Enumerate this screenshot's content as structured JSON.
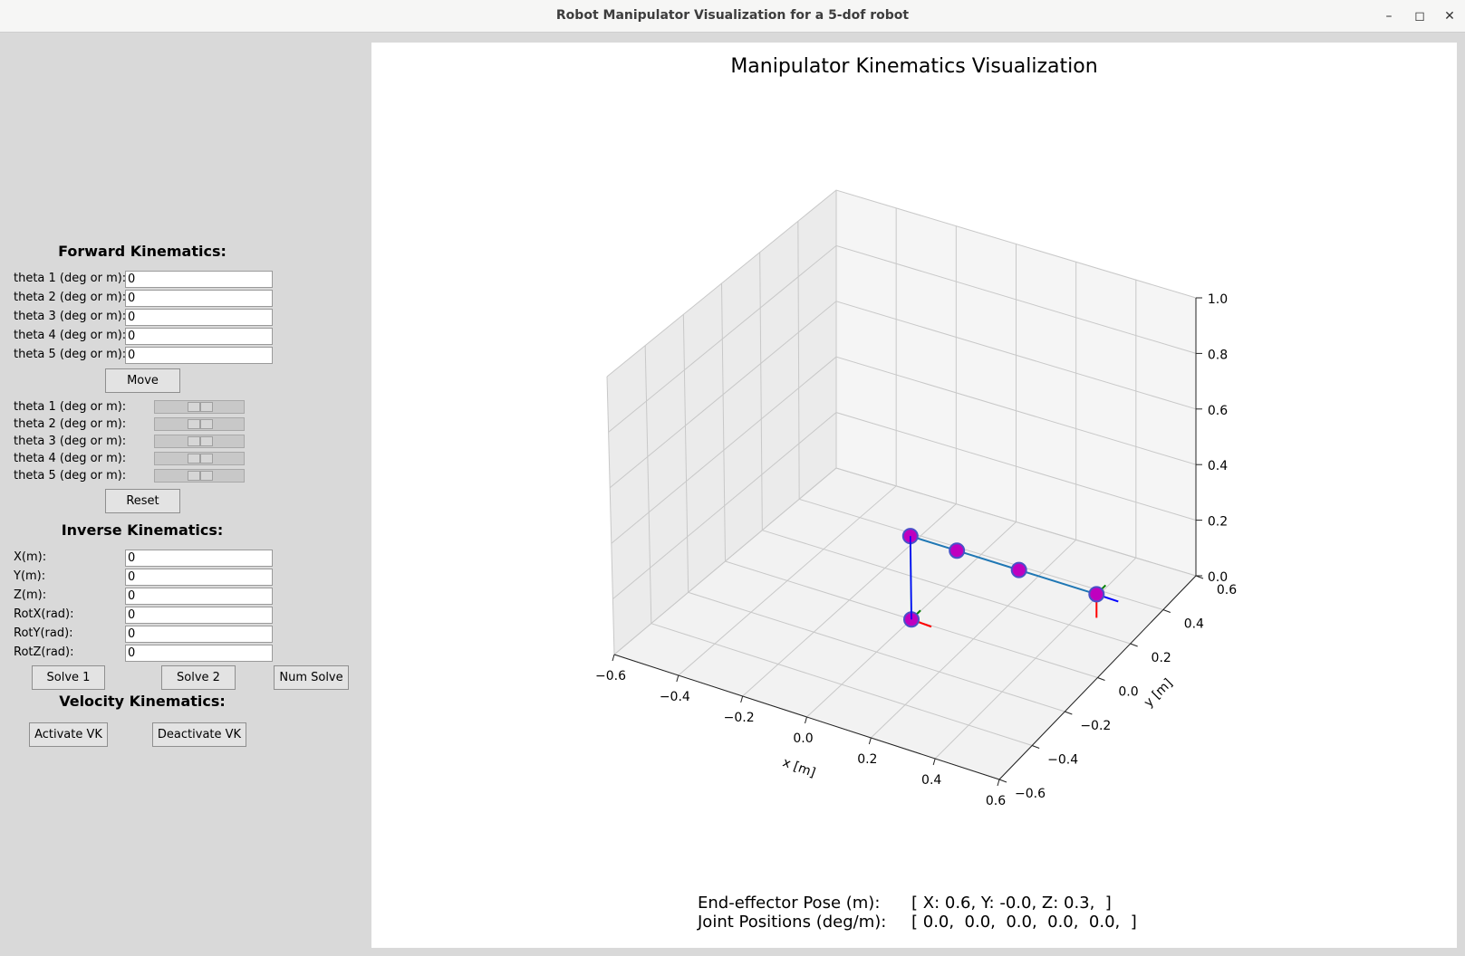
{
  "window": {
    "title": "Robot Manipulator Visualization for a 5-dof robot",
    "controls": {
      "minimize": "–",
      "maximize": "◻",
      "close": "✕"
    }
  },
  "forward_kinematics": {
    "heading": "Forward Kinematics:",
    "fields": [
      {
        "label": "theta 1 (deg or m):",
        "value": "0"
      },
      {
        "label": "theta 2 (deg or m):",
        "value": "0"
      },
      {
        "label": "theta 3 (deg or m):",
        "value": "0"
      },
      {
        "label": "theta 4 (deg or m):",
        "value": "0"
      },
      {
        "label": "theta 5 (deg or m):",
        "value": "0"
      }
    ],
    "move_label": "Move",
    "sliders": [
      {
        "label": "theta 1 (deg or m):",
        "value_fraction": 0.5
      },
      {
        "label": "theta 2 (deg or m):",
        "value_fraction": 0.5
      },
      {
        "label": "theta 3 (deg or m):",
        "value_fraction": 0.5
      },
      {
        "label": "theta 4 (deg or m):",
        "value_fraction": 0.5
      },
      {
        "label": "theta 5 (deg or m):",
        "value_fraction": 0.5
      }
    ],
    "reset_label": "Reset"
  },
  "inverse_kinematics": {
    "heading": "Inverse Kinematics:",
    "fields": [
      {
        "label": "X(m):",
        "value": "0"
      },
      {
        "label": "Y(m):",
        "value": "0"
      },
      {
        "label": "Z(m):",
        "value": "0"
      },
      {
        "label": "RotX(rad):",
        "value": "0"
      },
      {
        "label": "RotY(rad):",
        "value": "0"
      },
      {
        "label": "RotZ(rad):",
        "value": "0"
      }
    ],
    "solve1_label": "Solve 1",
    "solve2_label": "Solve 2",
    "numsolve_label": "Num Solve"
  },
  "velocity_kinematics": {
    "heading": "Velocity Kinematics:",
    "activate_label": "Activate VK",
    "deactivate_label": "Deactivate VK"
  },
  "plot": {
    "title": "Manipulator Kinematics Visualization",
    "x_label": "x [m]",
    "y_label": "y [m]",
    "x_ticks": [
      "−0.6",
      "−0.4",
      "−0.2",
      "0.0",
      "0.2",
      "0.4",
      "0.6"
    ],
    "y_ticks": [
      "−0.6",
      "−0.4",
      "−0.2",
      "0.0",
      "0.2",
      "0.4",
      "0.6"
    ],
    "z_ticks": [
      "0.0",
      "0.2",
      "0.4",
      "0.6",
      "0.8",
      "1.0"
    ],
    "xlim": [
      -0.6,
      0.6
    ],
    "ylim": [
      -0.6,
      0.6
    ],
    "zlim": [
      0.0,
      1.0
    ],
    "colors": {
      "link": "#1f77b4",
      "joint_fill": "#bf00bf",
      "joint_edge": "#4a50c8",
      "axis_x": "#ff0000",
      "axis_y": "#008000",
      "axis_z": "#0000ff"
    }
  },
  "readout": {
    "ee_label": "End-effector Pose (m):",
    "ee_value": "[ X: 0.6, Y: -0.0, Z: 0.3,  ]",
    "joint_label": "Joint Positions (deg/m):",
    "joint_value": "[ 0.0,  0.0,  0.0,  0.0,  0.0,  ]"
  }
}
